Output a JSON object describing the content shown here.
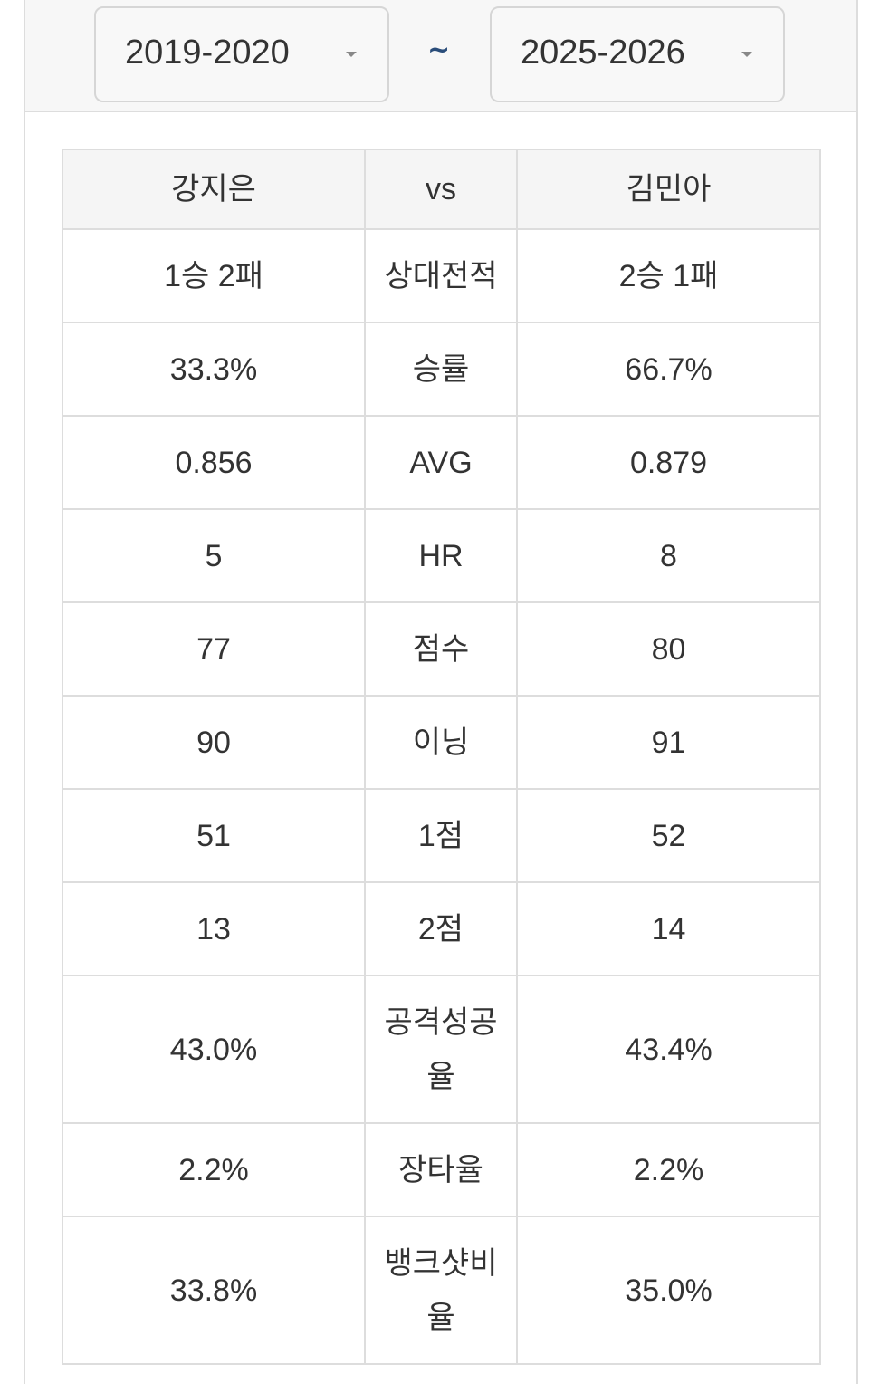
{
  "filter": {
    "from": "2019-2020",
    "separator": "~",
    "to": "2025-2026"
  },
  "table": {
    "header": {
      "left": "강지은",
      "middle": "vs",
      "right": "김민아"
    },
    "rows": [
      {
        "left": "1승 2패",
        "label": "상대전적",
        "right": "2승 1패"
      },
      {
        "left": "33.3%",
        "label": "승률",
        "right": "66.7%"
      },
      {
        "left": "0.856",
        "label": "AVG",
        "right": "0.879"
      },
      {
        "left": "5",
        "label": "HR",
        "right": "8"
      },
      {
        "left": "77",
        "label": "점수",
        "right": "80"
      },
      {
        "left": "90",
        "label": "이닝",
        "right": "91"
      },
      {
        "left": "51",
        "label": "1점",
        "right": "52"
      },
      {
        "left": "13",
        "label": "2점",
        "right": "14"
      },
      {
        "left": "43.0%",
        "label": "공격성공율",
        "right": "43.4%"
      },
      {
        "left": "2.2%",
        "label": "장타율",
        "right": "2.2%"
      },
      {
        "left": "33.8%",
        "label": "뱅크샷비율",
        "right": "35.0%"
      }
    ]
  }
}
